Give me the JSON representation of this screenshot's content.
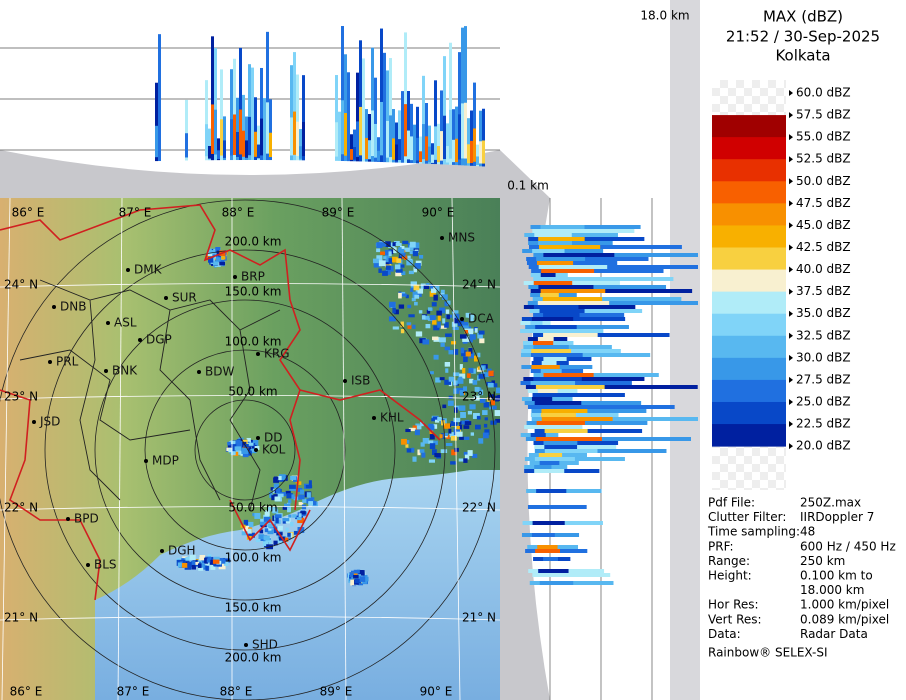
{
  "header": {
    "title": "MAX (dBZ)",
    "datetime": "21:52 / 30-Sep-2025",
    "station": "Kolkata"
  },
  "profile_labels": {
    "top_height": "18.0 km",
    "bottom_height": "0.1 km"
  },
  "legend": [
    {
      "label": "60.0 dBZ"
    },
    {
      "label": "57.5 dBZ",
      "color": "#a00000"
    },
    {
      "label": "55.0 dBZ",
      "color": "#d00000"
    },
    {
      "label": "52.5 dBZ",
      "color": "#e83000"
    },
    {
      "label": "50.0 dBZ",
      "color": "#f86000"
    },
    {
      "label": "47.5 dBZ",
      "color": "#f89000"
    },
    {
      "label": "45.0 dBZ",
      "color": "#f8b000"
    },
    {
      "label": "42.5 dBZ",
      "color": "#f8d040"
    },
    {
      "label": "40.0 dBZ",
      "color": "#f8f0d0"
    },
    {
      "label": "37.5 dBZ",
      "color": "#b0ecf8"
    },
    {
      "label": "35.0 dBZ",
      "color": "#80d4f8"
    },
    {
      "label": "32.5 dBZ",
      "color": "#58b8f0"
    },
    {
      "label": "30.0 dBZ",
      "color": "#3898e8"
    },
    {
      "label": "27.5 dBZ",
      "color": "#2070e0"
    },
    {
      "label": "25.0 dBZ",
      "color": "#0848c8"
    },
    {
      "label": "22.5 dBZ",
      "color": "#0020a0"
    },
    {
      "label": "20.0 dBZ"
    }
  ],
  "info": [
    {
      "label": "Pdf File:",
      "value": [
        "250Z.max"
      ]
    },
    {
      "label": "Clutter Filter:",
      "value": [
        "IIRDoppler 7"
      ]
    },
    {
      "label": "Time sampling:",
      "value": [
        "48"
      ]
    },
    {
      "label": "PRF:",
      "value": [
        "600 Hz / 450 Hz"
      ]
    },
    {
      "label": "Range:",
      "value": [
        "250 km"
      ]
    },
    {
      "label": "Height:",
      "value": [
        "0.100 km to",
        "18.000 km"
      ]
    },
    {
      "label": "Hor Res:",
      "value": [
        "1.000 km/pixel"
      ]
    },
    {
      "label": "Vert Res:",
      "value": [
        "0.089 km/pixel"
      ]
    },
    {
      "label": "Data:",
      "value": [
        "Radar Data"
      ]
    }
  ],
  "footer": "Rainbow® SELEX-SI",
  "map": {
    "longitudes_top": [
      "86° E",
      "87° E",
      "88° E",
      "89° E",
      "90° E"
    ],
    "longitudes_bottom": [
      "86° E",
      "87° E",
      "88° E",
      "89° E",
      "90° E"
    ],
    "latitudes_left": [
      "24° N",
      "23° N",
      "22° N",
      "21° N"
    ],
    "latitudes_right": [
      "24° N",
      "23° N",
      "22° N",
      "21° N"
    ],
    "rings_north": [
      "50.0 km",
      "100.0 km",
      "150.0 km",
      "200.0 km"
    ],
    "rings_south": [
      "50.0 km",
      "100.0 km",
      "150.0 km",
      "200.0 km"
    ],
    "cities": [
      "MNS",
      "BRP",
      "DMK",
      "SUR",
      "DNB",
      "ASL",
      "DGP",
      "KRG",
      "BDW",
      "PRL",
      "BNK",
      "JSD",
      "ISB",
      "KHL",
      "DCA",
      "DD",
      "KOL",
      "MDP",
      "BPD",
      "DGH",
      "BLS",
      "SHD"
    ]
  }
}
